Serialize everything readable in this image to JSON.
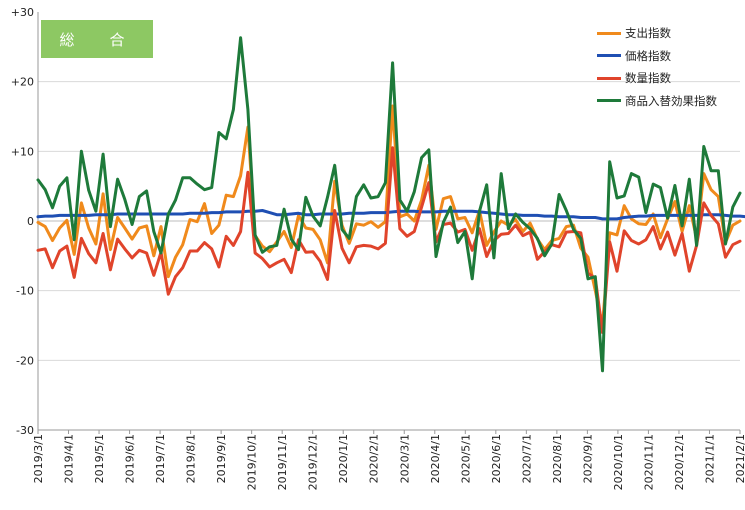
{
  "chart_data": {
    "type": "line",
    "title": "総　合",
    "ylim": [
      -30,
      30
    ],
    "y_ticks": [
      "+30",
      "+20",
      "+10",
      "0",
      "-10",
      "-20",
      "-30"
    ],
    "grid": "horizontal",
    "legend_position": "top-right",
    "x_ticks": [
      "2019/3/1",
      "2019/4/1",
      "2019/5/1",
      "2019/6/1",
      "2019/7/1",
      "2019/8/1",
      "2019/9/1",
      "2019/10/1",
      "2019/11/1",
      "2019/12/1",
      "2020/1/1",
      "2020/2/1",
      "2020/3/1",
      "2020/4/1",
      "2020/5/1",
      "2020/6/1",
      "2020/7/1",
      "2020/8/1",
      "2020/9/1",
      "2020/10/1",
      "2020/11/1",
      "2020/12/1",
      "2021/1/1",
      "2021/2/1"
    ],
    "series": [
      {
        "name": "支出指数",
        "color": "#f08a1c",
        "values": [
          -0.2,
          -0.8,
          -2.8,
          -1,
          0.1,
          -4.8,
          2.6,
          -1,
          -3.3,
          3.9,
          -4.1,
          0.5,
          -1,
          -2.6,
          -1,
          -0.7,
          -5,
          -0.8,
          -8,
          -5.2,
          -3.4,
          0.2,
          -0.1,
          2.5,
          -1.8,
          -0.6,
          3.7,
          3.5,
          6.5,
          13.5,
          -2.1,
          -3.6,
          -4.4,
          -3,
          -1.5,
          -3.8,
          0.8,
          -1,
          -1.2,
          -2.7,
          -6,
          5.7,
          -0.6,
          -3.2,
          -0.4,
          -0.6,
          -0.1,
          -0.9,
          -0.1,
          16.5,
          0.6,
          1,
          0,
          3,
          8,
          -1.2,
          3.2,
          3.5,
          0.3,
          0.5,
          -1.7,
          1.5,
          -3.5,
          -1.6,
          0,
          -0.6,
          0.2,
          -1.5,
          -0.3,
          -2.6,
          -4.1,
          -2.8,
          -2.5,
          -0.8,
          -0.6,
          -3.9,
          -5.2,
          -10,
          -15,
          -1.7,
          -2,
          2.2,
          0.3,
          -0.4,
          -0.5,
          1,
          -2.4,
          0.3,
          2.8,
          -1.5,
          2.2,
          -2.5,
          6.8,
          4.5,
          3.5,
          -3.1,
          -0.6,
          0
        ]
      },
      {
        "name": "価格指数",
        "color": "#1f4fb3",
        "values": [
          0.6,
          0.7,
          0.7,
          0.8,
          0.8,
          0.8,
          0.8,
          0.8,
          0.9,
          0.9,
          0.9,
          1,
          1,
          1,
          1,
          1,
          1,
          1,
          1,
          1,
          1,
          1.1,
          1.1,
          1.1,
          1.2,
          1.2,
          1.3,
          1.3,
          1.3,
          1.4,
          1.4,
          1.5,
          1.2,
          0.9,
          0.9,
          1,
          1.1,
          0.9,
          0.9,
          1,
          1,
          1,
          1,
          1.1,
          1.1,
          1.1,
          1.2,
          1.2,
          1.2,
          1.3,
          1.4,
          1.4,
          1.4,
          1.3,
          1.3,
          1.3,
          1.4,
          1.4,
          1.4,
          1.4,
          1.4,
          1.3,
          1.2,
          1.1,
          1,
          0.9,
          0.9,
          0.8,
          0.8,
          0.8,
          0.7,
          0.7,
          0.6,
          0.6,
          0.6,
          0.5,
          0.5,
          0.5,
          0.3,
          0.3,
          0.3,
          0.5,
          0.6,
          0.7,
          0.7,
          0.8,
          0.8,
          0.8,
          0.8,
          0.8,
          0.8,
          0.8,
          0.9,
          0.9,
          0.9,
          0.8,
          0.7,
          0.7,
          0.6,
          0.6
        ]
      },
      {
        "name": "数量指数",
        "color": "#e0442b",
        "values": [
          -4.2,
          -4,
          -6.7,
          -4.3,
          -3.6,
          -8.1,
          -2.5,
          -4.7,
          -6,
          -1.8,
          -7,
          -2.6,
          -4,
          -5.3,
          -4.2,
          -4.6,
          -7.8,
          -4.5,
          -10.5,
          -8,
          -6.7,
          -4.3,
          -4.3,
          -3.1,
          -4,
          -6.6,
          -2.2,
          -3.5,
          -1.5,
          7,
          -4.6,
          -5.4,
          -6.6,
          -6,
          -5.5,
          -7.4,
          -2.7,
          -4.5,
          -4.4,
          -5.8,
          -8.4,
          1.5,
          -3.9,
          -6,
          -3.7,
          -3.5,
          -3.6,
          -4,
          -3.2,
          10.5,
          -1.1,
          -2.2,
          -1.5,
          2,
          5.5,
          -3,
          -0.5,
          -0.3,
          -1.6,
          -1.2,
          -4.2,
          -1.1,
          -5.1,
          -2.8,
          -1.9,
          -1.8,
          -0.6,
          -2.1,
          -1.6,
          -5.5,
          -4.4,
          -3.4,
          -3.7,
          -1.6,
          -1.5,
          -1.7,
          -7.5,
          -8.2,
          -16,
          -3,
          -7.2,
          -1.4,
          -2.8,
          -3.3,
          -2.7,
          -0.8,
          -4,
          -1.6,
          -4.9,
          -1.8,
          -7.2,
          -3.5,
          2.6,
          0.8,
          -0.4,
          -5.2,
          -3.4,
          -2.9
        ]
      },
      {
        "name": "商品入替効果指数",
        "color": "#1e7a3a",
        "values": [
          5.9,
          4.5,
          1.9,
          5,
          6.2,
          -2.7,
          10,
          4.4,
          1.4,
          9.6,
          -0.8,
          6,
          3.1,
          -0.5,
          3.5,
          4.3,
          -1.5,
          -4.6,
          1,
          3,
          6.2,
          6.2,
          5.3,
          4.5,
          4.8,
          12.7,
          11.8,
          16,
          26.3,
          16,
          -2,
          -4.5,
          -3.7,
          -3.5,
          1.7,
          -2.6,
          -4.1,
          3.4,
          0.7,
          -0.7,
          3.4,
          8,
          -1.2,
          -2.5,
          3.5,
          5.2,
          3.3,
          3.5,
          5.5,
          22.7,
          3,
          1.4,
          4.2,
          9.1,
          10.2,
          -5.1,
          -0.2,
          2,
          -3.1,
          -1.5,
          -8.3,
          1.4,
          5.2,
          -5.3,
          6.8,
          -1.1,
          1,
          -0.2,
          -1.1,
          -2.5,
          -5,
          -3.3,
          3.8,
          1.5,
          -1.2,
          -2.5,
          -8.3,
          -8,
          -21.5,
          8.5,
          3.3,
          3.6,
          6.8,
          6.3,
          1.2,
          5.3,
          4.8,
          0.4,
          5.1,
          -0.7,
          6,
          -3.5,
          10.7,
          7.2,
          7.2,
          -3.3,
          2,
          4
        ]
      }
    ]
  }
}
